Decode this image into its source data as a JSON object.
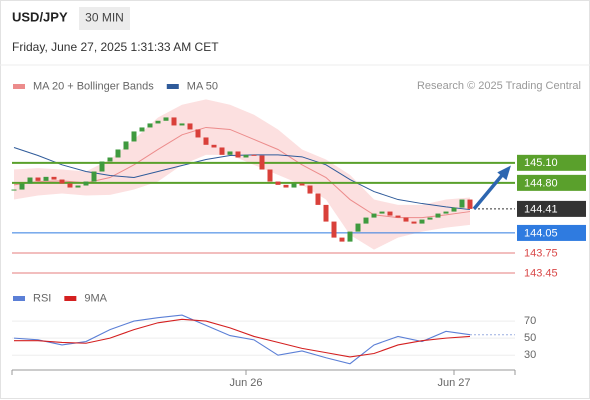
{
  "header": {
    "symbol": "USD/JPY",
    "timeframe": "30 MIN",
    "datetime": "Friday, June 27, 2025 1:31:33 AM CET"
  },
  "chart_data": [
    {
      "type": "candlestick",
      "credit": "Research © 2025 Trading Central",
      "categories": [
        null,
        null,
        null,
        null,
        null,
        null,
        null,
        null,
        null,
        null,
        null,
        null,
        null,
        null,
        null,
        null,
        null,
        null,
        null,
        null,
        null,
        null,
        null,
        null,
        null,
        null,
        null,
        null,
        null,
        "Jun 26",
        null,
        null,
        null,
        null,
        null,
        null,
        null,
        null,
        null,
        null,
        null,
        null,
        null,
        null,
        null,
        null,
        null,
        null,
        null,
        null,
        null,
        null,
        null,
        null,
        null,
        "Jun 27",
        null,
        null
      ],
      "closes": [
        144.7,
        144.79,
        144.88,
        144.83,
        144.89,
        144.85,
        144.79,
        144.73,
        144.76,
        144.82,
        144.97,
        145.12,
        145.18,
        145.3,
        145.42,
        145.57,
        145.63,
        145.69,
        145.73,
        145.78,
        145.66,
        145.69,
        145.6,
        145.48,
        145.37,
        145.33,
        145.22,
        145.27,
        145.18,
        145.22,
        145.21,
        145.0,
        144.82,
        144.77,
        144.73,
        144.79,
        144.76,
        144.64,
        144.47,
        144.22,
        143.98,
        143.92,
        144.07,
        144.19,
        144.28,
        144.34,
        144.37,
        144.31,
        144.28,
        144.22,
        144.19,
        144.25,
        144.28,
        144.34,
        144.37,
        144.43,
        144.55,
        144.41
      ],
      "up_color": "#3f9a3f",
      "down_color": "#d9403a",
      "ylim": [
        143.27,
        146.94
      ],
      "series": [
        {
          "name": "MA 20 + Bollinger Bands",
          "color": "#ec8c8c",
          "band_color": "#fbdada",
          "x": [
            0,
            3,
            6,
            9,
            12,
            15,
            18,
            21,
            24,
            27,
            30,
            33,
            36,
            39,
            42,
            45,
            48,
            51,
            54,
            57
          ],
          "values": [
            144.77,
            144.82,
            144.83,
            144.8,
            144.88,
            145.07,
            145.3,
            145.52,
            145.63,
            145.6,
            145.45,
            145.3,
            145.07,
            144.88,
            144.55,
            144.32,
            144.28,
            144.28,
            144.32,
            144.37
          ],
          "upper": [
            145.0,
            145.02,
            145.0,
            144.97,
            145.15,
            145.45,
            145.78,
            145.97,
            146.05,
            145.97,
            145.82,
            145.6,
            145.3,
            145.15,
            144.92,
            144.55,
            144.47,
            144.47,
            144.55,
            144.58
          ],
          "lower": [
            144.55,
            144.61,
            144.64,
            144.61,
            144.62,
            144.7,
            144.82,
            145.07,
            145.22,
            145.22,
            145.07,
            144.92,
            144.77,
            144.55,
            144.02,
            143.8,
            143.98,
            144.07,
            144.13,
            144.17
          ]
        },
        {
          "name": "MA 50",
          "color": "#2f5b9a",
          "x": [
            0,
            3,
            6,
            9,
            12,
            15,
            18,
            21,
            24,
            27,
            30,
            33,
            36,
            39,
            42,
            45,
            48,
            51,
            54,
            57
          ],
          "values": [
            145.33,
            145.21,
            145.07,
            144.97,
            144.91,
            144.88,
            144.97,
            145.06,
            145.15,
            145.21,
            145.22,
            145.22,
            145.19,
            145.07,
            144.85,
            144.67,
            144.55,
            144.49,
            144.44,
            144.4
          ]
        }
      ],
      "levels": [
        {
          "value": 145.1,
          "label": "145.10",
          "color": "#5aa02c",
          "box": true,
          "line_style": "solid",
          "line_width": 2
        },
        {
          "value": 144.8,
          "label": "144.80",
          "color": "#5aa02c",
          "box": true,
          "line_style": "solid",
          "line_width": 2
        },
        {
          "value": 144.41,
          "label": "144.41",
          "color": "#333333",
          "box": true,
          "line_style": "dotted",
          "line_width": 1
        },
        {
          "value": 144.05,
          "label": "144.05",
          "color": "#2f7be0",
          "box": true,
          "line_style": "solid",
          "line_width": 1
        },
        {
          "value": 143.75,
          "label": "143.75",
          "color": "#d94848",
          "box": false,
          "line_style": "solid",
          "line_width": 1
        },
        {
          "value": 143.45,
          "label": "143.45",
          "color": "#d94848",
          "box": false,
          "line_style": "solid",
          "line_width": 1
        }
      ]
    },
    {
      "type": "line",
      "ylim": [
        15,
        90
      ],
      "yticks": [
        70,
        50,
        30
      ],
      "series": [
        {
          "name": "RSI",
          "color": "#5b7fd6",
          "x": [
            0,
            3,
            6,
            9,
            12,
            15,
            18,
            21,
            24,
            27,
            30,
            33,
            36,
            39,
            42,
            45,
            48,
            51,
            54,
            57
          ],
          "values": [
            50,
            48,
            42,
            46,
            60,
            70,
            74,
            77,
            65,
            53,
            48,
            30,
            35,
            27,
            20,
            42,
            52,
            46,
            58,
            54
          ]
        },
        {
          "name": "9MA",
          "color": "#d42020",
          "x": [
            0,
            3,
            6,
            9,
            12,
            15,
            18,
            21,
            24,
            27,
            30,
            33,
            36,
            39,
            42,
            45,
            48,
            51,
            54,
            57
          ],
          "values": [
            47,
            47,
            45,
            44,
            50,
            60,
            68,
            72,
            70,
            62,
            52,
            45,
            38,
            33,
            28,
            32,
            42,
            47,
            50,
            52
          ]
        }
      ]
    }
  ]
}
